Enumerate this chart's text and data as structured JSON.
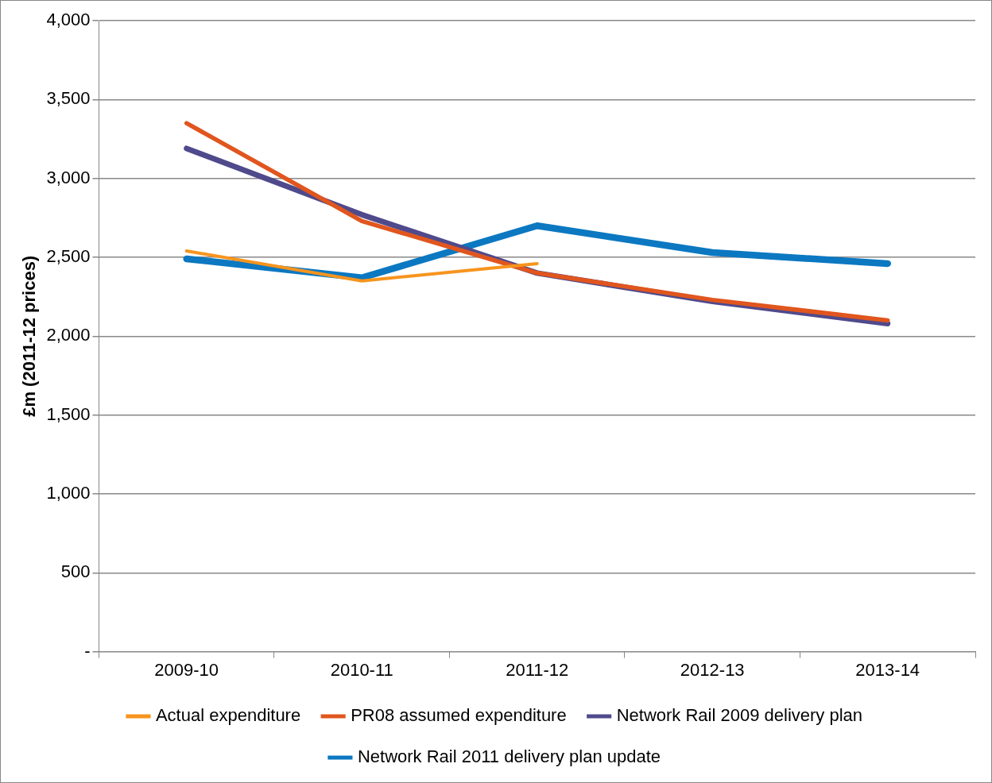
{
  "chart_data": {
    "type": "line",
    "ylabel": "£m (2011-12 prices)",
    "categories": [
      "2009-10",
      "2010-11",
      "2011-12",
      "2012-13",
      "2013-14"
    ],
    "series": [
      {
        "name": "Actual expenditure",
        "color": "#f7941d",
        "values": [
          2540,
          2350,
          2460,
          null,
          null
        ]
      },
      {
        "name": "PR08 assumed expenditure",
        "color": "#e0561e",
        "values": [
          3350,
          2730,
          2400,
          2230,
          2100
        ]
      },
      {
        "name": "Network Rail 2009 delivery plan",
        "color": "#4f4a8c",
        "values": [
          3190,
          2770,
          2400,
          2220,
          2080
        ]
      },
      {
        "name": "Network Rail 2011 delivery plan update",
        "color": "#0b78c1",
        "values": [
          2490,
          2370,
          2700,
          2530,
          2460
        ]
      }
    ],
    "ylim": [
      0,
      4000
    ],
    "yticks": [
      {
        "value": 0,
        "label": "-"
      },
      {
        "value": 500,
        "label": "500"
      },
      {
        "value": 1000,
        "label": "1,000"
      },
      {
        "value": 1500,
        "label": "1,500"
      },
      {
        "value": 2000,
        "label": "2,000"
      },
      {
        "value": 2500,
        "label": "2,500"
      },
      {
        "value": 3000,
        "label": "3,000"
      },
      {
        "value": 3500,
        "label": "3,500"
      },
      {
        "value": 4000,
        "label": "4,000"
      }
    ],
    "grid": "y",
    "legend": "bottom",
    "marker": "none",
    "line_style": "solid"
  }
}
